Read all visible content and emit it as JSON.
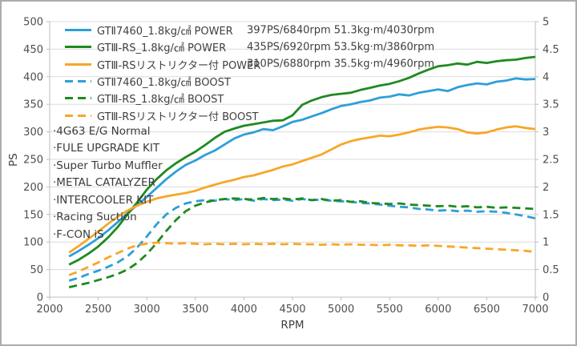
{
  "figure": {
    "background": "#ffffff",
    "border_color": "#acacac",
    "gridline_color": "#dcdcdc",
    "axis_line_color": "#bdbdbd",
    "text_color": "#3f3f3f"
  },
  "chart_data": {
    "type": "line",
    "title": "",
    "xlabel": "RPM",
    "ylabel_left": "PS",
    "ylabel_right": "",
    "xlim": [
      2000,
      7000
    ],
    "x_ticks": [
      2000,
      2500,
      3000,
      3500,
      4000,
      4500,
      5000,
      5500,
      6000,
      6500,
      7000
    ],
    "ylim_left": [
      0,
      500
    ],
    "y_ticks_left": [
      0,
      50,
      100,
      150,
      200,
      250,
      300,
      350,
      400,
      450,
      500
    ],
    "ylim_right": [
      0,
      5
    ],
    "y_ticks_right": [
      0,
      0.5,
      1,
      1.5,
      2,
      2.5,
      3,
      3.5,
      4,
      4.5,
      5
    ],
    "grid": "horizontal",
    "legend_position": "top-left-inside",
    "rpm": [
      2200,
      2300,
      2400,
      2500,
      2600,
      2700,
      2800,
      2900,
      3000,
      3100,
      3200,
      3300,
      3400,
      3500,
      3600,
      3700,
      3800,
      3900,
      4000,
      4100,
      4200,
      4300,
      4400,
      4500,
      4600,
      4700,
      4800,
      4900,
      5000,
      5100,
      5200,
      5300,
      5400,
      5500,
      5600,
      5700,
      5800,
      5900,
      6000,
      6100,
      6200,
      6300,
      6400,
      6500,
      6600,
      6700,
      6800,
      6900,
      7000
    ],
    "series": [
      {
        "name": "GTⅡ7460_1.8kg/㎠ POWER",
        "axis": "left",
        "style": "solid",
        "color": "#2E9FD7",
        "stats": "397PS/6840rpm 51.3kg·m/4030rpm",
        "values": [
          74,
          84,
          95,
          107,
          121,
          136,
          152,
          167,
          182,
          198,
          214,
          228,
          240,
          248,
          258,
          266,
          277,
          288,
          295,
          299,
          305,
          303,
          310,
          318,
          322,
          328,
          334,
          341,
          347,
          350,
          354,
          357,
          362,
          364,
          368,
          366,
          371,
          374,
          377,
          374,
          381,
          385,
          388,
          386,
          391,
          393,
          397,
          395,
          396
        ]
      },
      {
        "name": "GTⅢ-RS_1.8kg/㎠ POWER",
        "axis": "left",
        "style": "solid",
        "color": "#1F8A1F",
        "stats": "435PS/6920rpm 53.5kg·m/3860rpm",
        "values": [
          59,
          68,
          79,
          92,
          108,
          127,
          150,
          172,
          195,
          214,
          230,
          243,
          254,
          264,
          276,
          289,
          300,
          306,
          311,
          314,
          317,
          320,
          321,
          330,
          349,
          357,
          363,
          367,
          369,
          371,
          376,
          380,
          384,
          387,
          392,
          398,
          406,
          413,
          419,
          421,
          424,
          422,
          427,
          425,
          428,
          430,
          431,
          434,
          436
        ]
      },
      {
        "name": "GTⅢ-RSリストリクター付 POWER",
        "axis": "left",
        "style": "solid",
        "color": "#F7A728",
        "stats": "310PS/6880rpm 35.5kg·m/4960rpm",
        "values": [
          81,
          93,
          106,
          119,
          133,
          146,
          157,
          166,
          173,
          179,
          183,
          186,
          189,
          193,
          199,
          204,
          209,
          213,
          218,
          221,
          226,
          231,
          237,
          241,
          247,
          253,
          259,
          268,
          277,
          283,
          287,
          290,
          293,
          292,
          295,
          299,
          304,
          307,
          309,
          308,
          305,
          299,
          297,
          299,
          304,
          308,
          310,
          307,
          305
        ]
      },
      {
        "name": "GTⅡ7460_1.8kg/㎠ BOOST",
        "axis": "right",
        "style": "dashed",
        "color": "#2E9FD7",
        "stats": "",
        "values": [
          0.3,
          0.35,
          0.42,
          0.48,
          0.55,
          0.63,
          0.74,
          0.9,
          1.1,
          1.32,
          1.5,
          1.62,
          1.7,
          1.74,
          1.76,
          1.75,
          1.78,
          1.76,
          1.78,
          1.75,
          1.78,
          1.76,
          1.77,
          1.75,
          1.78,
          1.76,
          1.77,
          1.75,
          1.74,
          1.73,
          1.71,
          1.7,
          1.68,
          1.66,
          1.64,
          1.63,
          1.6,
          1.59,
          1.57,
          1.58,
          1.56,
          1.57,
          1.55,
          1.56,
          1.55,
          1.53,
          1.5,
          1.47,
          1.43
        ]
      },
      {
        "name": "GTⅢ-RS_1.8kg/㎠ BOOST",
        "axis": "right",
        "style": "dashed",
        "color": "#1F8A1F",
        "stats": "",
        "values": [
          0.18,
          0.22,
          0.26,
          0.31,
          0.36,
          0.42,
          0.5,
          0.62,
          0.78,
          0.98,
          1.2,
          1.4,
          1.56,
          1.66,
          1.72,
          1.76,
          1.78,
          1.79,
          1.78,
          1.77,
          1.8,
          1.78,
          1.79,
          1.77,
          1.79,
          1.76,
          1.78,
          1.75,
          1.76,
          1.73,
          1.74,
          1.71,
          1.7,
          1.69,
          1.7,
          1.68,
          1.67,
          1.66,
          1.65,
          1.66,
          1.64,
          1.65,
          1.63,
          1.64,
          1.62,
          1.63,
          1.62,
          1.61,
          1.6
        ]
      },
      {
        "name": "GTⅢ-RSリストリクター付 BOOST",
        "axis": "right",
        "style": "dashed",
        "color": "#F7A728",
        "stats": "",
        "values": [
          0.4,
          0.47,
          0.55,
          0.63,
          0.72,
          0.8,
          0.88,
          0.94,
          0.97,
          0.99,
          0.98,
          0.97,
          0.98,
          0.97,
          0.96,
          0.97,
          0.96,
          0.97,
          0.96,
          0.97,
          0.96,
          0.97,
          0.96,
          0.97,
          0.96,
          0.96,
          0.95,
          0.96,
          0.95,
          0.96,
          0.95,
          0.95,
          0.94,
          0.95,
          0.94,
          0.94,
          0.93,
          0.94,
          0.93,
          0.92,
          0.91,
          0.9,
          0.89,
          0.88,
          0.87,
          0.86,
          0.85,
          0.84,
          0.82
        ]
      }
    ],
    "annotations": [
      "·4G63 E/G Normal",
      "·FULE UPGRADE KIT",
      "·Super Turbo Muffler",
      "·METAL CATALYZER",
      "·INTERCOOLER KIT",
      "·Racing Suction",
      "·F-CON iS"
    ]
  }
}
